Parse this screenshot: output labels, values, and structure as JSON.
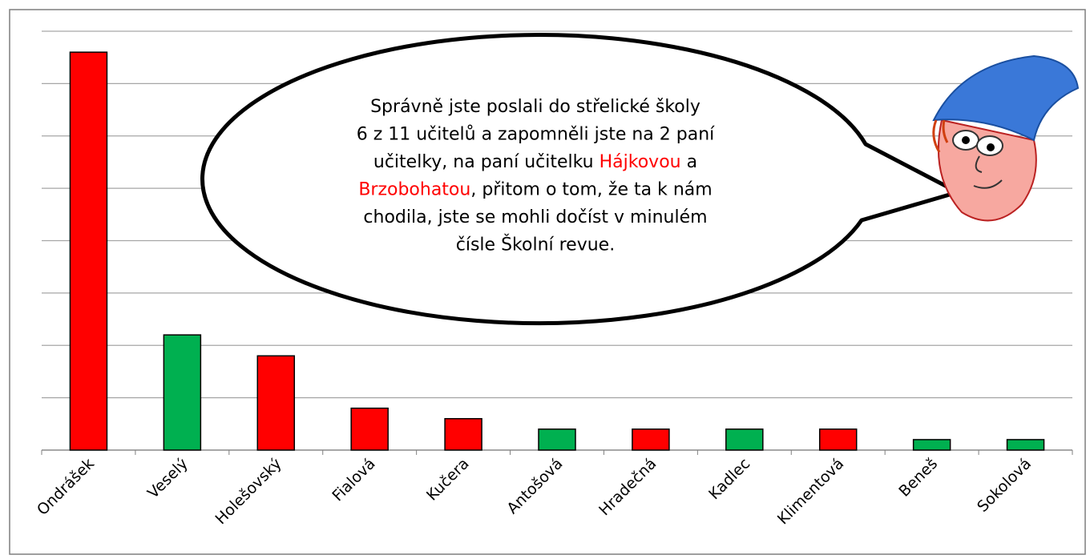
{
  "chart_data": {
    "type": "bar",
    "categories": [
      "Ondrášek",
      "Veselý",
      "Holešovský",
      "Fialová",
      "Kučera",
      "Antošová",
      "Hradečná",
      "Kadlec",
      "Klimentová",
      "Beneš",
      "Sokolová"
    ],
    "values": [
      7.6,
      2.2,
      1.8,
      0.8,
      0.6,
      0.4,
      0.4,
      0.4,
      0.4,
      0.2,
      0.2
    ],
    "colors": [
      "#ff0000",
      "#00b050",
      "#ff0000",
      "#ff0000",
      "#ff0000",
      "#00b050",
      "#ff0000",
      "#00b050",
      "#ff0000",
      "#00b050",
      "#00b050"
    ],
    "ylim": [
      0,
      8
    ],
    "yticks": [
      0,
      1,
      2,
      3,
      4,
      5,
      6,
      7,
      8
    ],
    "grid": true
  },
  "bubble": {
    "lines": [
      [
        "Správně jste poslali do střelické školy"
      ],
      [
        "6 z 11 učitelů a zapomněli jste na 2 paní"
      ],
      [
        "učitelky, na paní učitelku ",
        {
          "text": "Hájkovou",
          "color": "#ff0000"
        },
        " a"
      ],
      [
        {
          "text": "Brzobohatou",
          "color": "#ff0000"
        },
        ", přitom o tom, že ta k nám"
      ],
      [
        "chodila, jste se mohli dočíst v minulém"
      ],
      [
        "čísle Školní revue."
      ]
    ]
  }
}
